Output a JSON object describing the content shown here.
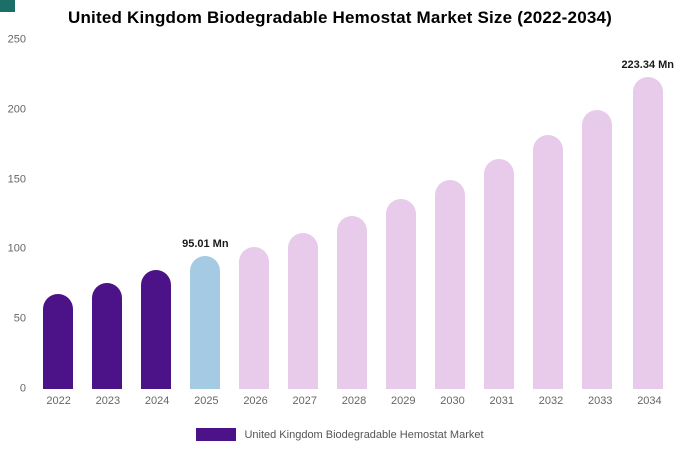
{
  "title": "United Kingdom Biodegradable Hemostat Market Size (2022-2034)",
  "colors": {
    "historical_bar": "#4b1387",
    "highlight_bar": "#a4cbe3",
    "forecast_bar": "#e8cbea",
    "corner_accent": "#1b6f66",
    "axis_text": "#666666"
  },
  "legend": {
    "swatch_color": "#4b1387",
    "label": "United Kingdom Biodegradable Hemostat Market"
  },
  "chart_data": {
    "type": "bar",
    "title": "United Kingdom Biodegradable Hemostat Market Size (2022-2034)",
    "categories": [
      "2022",
      "2023",
      "2024",
      "2025",
      "2026",
      "2027",
      "2028",
      "2029",
      "2030",
      "2031",
      "2032",
      "2033",
      "2034"
    ],
    "values": [
      68,
      76,
      85,
      95.01,
      102,
      112,
      124,
      136,
      150,
      165,
      182,
      200,
      223.34
    ],
    "point_colors": [
      "#4b1387",
      "#4b1387",
      "#4b1387",
      "#a4cbe3",
      "#e8cbea",
      "#e8cbea",
      "#e8cbea",
      "#e8cbea",
      "#e8cbea",
      "#e8cbea",
      "#e8cbea",
      "#e8cbea",
      "#e8cbea"
    ],
    "annotations": [
      {
        "index": 3,
        "text": "95.01 Mn"
      },
      {
        "index": 12,
        "text": "223.34 Mn"
      }
    ],
    "xlabel": "",
    "ylabel": "",
    "ylim": [
      0,
      250
    ],
    "yticks": [
      0,
      50,
      100,
      150,
      200,
      250
    ],
    "grid": false,
    "legend_position": "bottom"
  }
}
